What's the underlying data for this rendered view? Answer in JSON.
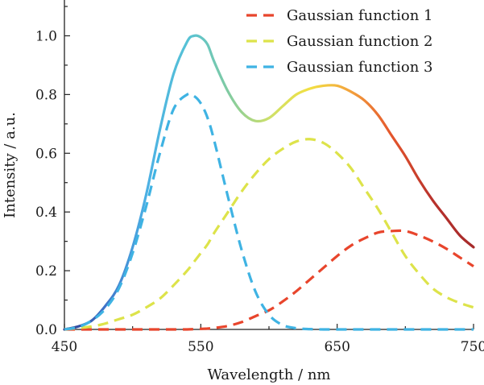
{
  "chart_data": {
    "type": "line",
    "title": "",
    "xlabel": "Wavelength / nm",
    "ylabel": "Intensity / a.u.",
    "xlim": [
      450,
      750
    ],
    "ylim": [
      0,
      1.1
    ],
    "x_ticks": [
      "450",
      "550",
      "650",
      "750"
    ],
    "y_ticks": [
      "0.0",
      "0.2",
      "0.4",
      "0.6",
      "0.8",
      "1.0"
    ],
    "grid": false,
    "legend_position": "top-right",
    "x": [
      450,
      460,
      470,
      480,
      490,
      500,
      510,
      520,
      530,
      540,
      545,
      550,
      555,
      560,
      570,
      580,
      590,
      600,
      610,
      620,
      630,
      640,
      650,
      660,
      670,
      680,
      690,
      700,
      710,
      720,
      730,
      740,
      750
    ],
    "total": {
      "values": [
        0.0,
        0.01,
        0.03,
        0.08,
        0.15,
        0.28,
        0.46,
        0.68,
        0.87,
        0.98,
        1.0,
        0.995,
        0.97,
        0.91,
        0.81,
        0.74,
        0.71,
        0.72,
        0.76,
        0.8,
        0.82,
        0.83,
        0.83,
        0.81,
        0.78,
        0.73,
        0.66,
        0.59,
        0.51,
        0.44,
        0.38,
        0.32,
        0.28
      ],
      "gradient_colors": [
        "#2b3a8f",
        "#3f74c9",
        "#4cb0e4",
        "#56c2d6",
        "#80cba2",
        "#cde06a",
        "#f2e042",
        "#f3a13c",
        "#e4552c",
        "#b8322c",
        "#a62a2a"
      ]
    },
    "series": [
      {
        "name": "Gaussian function 1",
        "color": "#e8452c",
        "values": [
          0,
          0,
          0,
          0,
          0,
          0,
          0,
          0,
          0,
          0,
          0.001,
          0.002,
          0.003,
          0.005,
          0.012,
          0.025,
          0.045,
          0.065,
          0.095,
          0.13,
          0.17,
          0.21,
          0.25,
          0.285,
          0.31,
          0.33,
          0.335,
          0.335,
          0.32,
          0.3,
          0.275,
          0.245,
          0.215
        ]
      },
      {
        "name": "Gaussian function 2",
        "color": "#dde34a",
        "values": [
          0,
          0.005,
          0.01,
          0.02,
          0.035,
          0.05,
          0.075,
          0.105,
          0.15,
          0.2,
          0.23,
          0.26,
          0.29,
          0.33,
          0.4,
          0.47,
          0.53,
          0.58,
          0.615,
          0.64,
          0.648,
          0.635,
          0.6,
          0.55,
          0.48,
          0.41,
          0.33,
          0.25,
          0.19,
          0.14,
          0.11,
          0.09,
          0.075
        ]
      },
      {
        "name": "Gaussian function 3",
        "color": "#3fb3e3",
        "values": [
          0,
          0.008,
          0.03,
          0.07,
          0.14,
          0.26,
          0.42,
          0.6,
          0.75,
          0.8,
          0.795,
          0.77,
          0.72,
          0.64,
          0.45,
          0.27,
          0.13,
          0.05,
          0.015,
          0.004,
          0.001,
          0,
          0,
          0,
          0,
          0,
          0,
          0,
          0,
          0,
          0,
          0,
          0
        ]
      }
    ]
  }
}
